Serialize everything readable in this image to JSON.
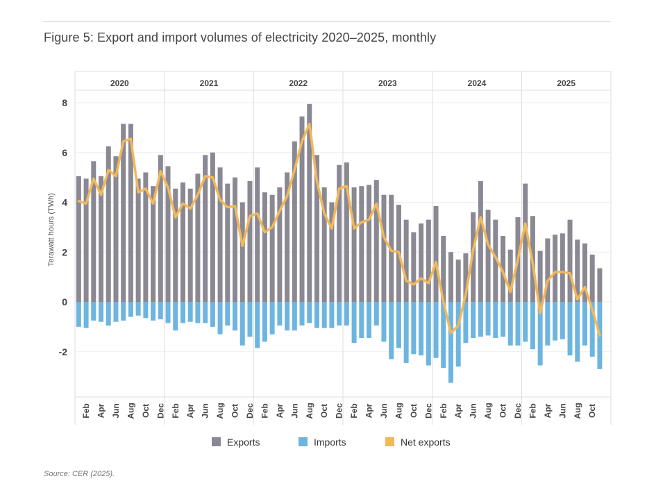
{
  "title": "Figure 5: Export and import volumes of electricity 2020–2025, monthly",
  "source": "Source: CER (2025).",
  "chart_data": {
    "type": "bar",
    "ylabel": "Terawatt hours (TWh)",
    "ylim": [
      -3.8,
      8.5
    ],
    "yticks": [
      8,
      6,
      4,
      2,
      0,
      -2
    ],
    "ytick_labels": [
      "8",
      "6",
      "4",
      "2",
      "0",
      "-2"
    ],
    "grid": true,
    "legend_position": "bottom",
    "years": [
      "2020",
      "2021",
      "2022",
      "2023",
      "2024",
      "2025"
    ],
    "months_per_year": [
      12,
      12,
      12,
      12,
      12,
      11
    ],
    "month_tick_labels": [
      "Feb",
      "Apr",
      "Jun",
      "Aug",
      "Oct",
      "Dec"
    ],
    "colors": {
      "exports": "#8a8893",
      "imports": "#6db5e0",
      "net": "#f2b85a"
    },
    "series": [
      {
        "name": "Exports",
        "kind": "bar",
        "values": [
          5.05,
          4.95,
          5.65,
          5.05,
          6.25,
          5.85,
          7.15,
          7.15,
          4.95,
          5.2,
          4.65,
          5.9,
          5.45,
          4.55,
          4.8,
          4.55,
          5.15,
          5.9,
          6.0,
          5.4,
          4.75,
          5.0,
          4.0,
          4.85,
          5.4,
          4.4,
          4.3,
          4.6,
          5.2,
          6.45,
          7.45,
          7.95,
          5.9,
          4.6,
          4.0,
          5.5,
          5.6,
          4.6,
          4.65,
          4.7,
          4.9,
          4.3,
          4.3,
          3.9,
          3.3,
          2.8,
          3.15,
          3.3,
          3.85,
          2.65,
          2.0,
          1.7,
          1.95,
          3.6,
          4.85,
          3.7,
          3.3,
          2.65,
          2.1,
          3.4,
          4.75,
          3.45,
          2.05,
          2.55,
          2.7,
          2.75,
          3.3,
          2.5,
          2.35,
          1.9,
          1.35
        ]
      },
      {
        "name": "Imports",
        "kind": "bar",
        "values": [
          -1.0,
          -1.05,
          -0.75,
          -0.8,
          -0.95,
          -0.8,
          -0.75,
          -0.6,
          -0.55,
          -0.65,
          -0.75,
          -0.7,
          -0.85,
          -1.15,
          -0.85,
          -0.8,
          -0.85,
          -0.85,
          -1.0,
          -1.3,
          -0.95,
          -1.15,
          -1.75,
          -1.4,
          -1.85,
          -1.6,
          -1.3,
          -0.95,
          -1.15,
          -1.15,
          -0.95,
          -0.85,
          -1.05,
          -1.05,
          -1.05,
          -0.95,
          -0.95,
          -1.65,
          -1.45,
          -1.45,
          -0.95,
          -1.6,
          -2.3,
          -1.85,
          -2.45,
          -2.1,
          -2.15,
          -2.55,
          -2.25,
          -2.65,
          -3.25,
          -2.6,
          -1.65,
          -1.45,
          -1.4,
          -1.35,
          -1.45,
          -1.4,
          -1.75,
          -1.75,
          -1.6,
          -1.9,
          -2.55,
          -1.75,
          -1.55,
          -1.5,
          -2.15,
          -2.4,
          -1.75,
          -2.2,
          -2.7
        ]
      },
      {
        "name": "Net exports",
        "kind": "line",
        "values": [
          4.05,
          3.95,
          4.95,
          4.3,
          5.3,
          5.05,
          6.45,
          6.55,
          4.4,
          4.55,
          3.95,
          5.25,
          4.6,
          3.4,
          3.95,
          3.75,
          4.3,
          5.05,
          5.0,
          4.1,
          3.8,
          3.85,
          2.25,
          3.45,
          3.55,
          2.8,
          3.0,
          3.65,
          4.25,
          5.3,
          6.45,
          7.15,
          4.85,
          3.55,
          2.95,
          4.55,
          4.65,
          2.95,
          3.2,
          3.3,
          3.95,
          2.6,
          2.05,
          2.0,
          0.85,
          0.7,
          0.95,
          0.75,
          1.6,
          0.0,
          -1.25,
          -0.95,
          0.3,
          2.1,
          3.4,
          2.3,
          1.8,
          1.2,
          0.4,
          1.7,
          3.15,
          1.55,
          -0.45,
          0.85,
          1.2,
          1.2,
          1.15,
          0.1,
          0.6,
          -0.3,
          -1.35
        ]
      }
    ]
  }
}
